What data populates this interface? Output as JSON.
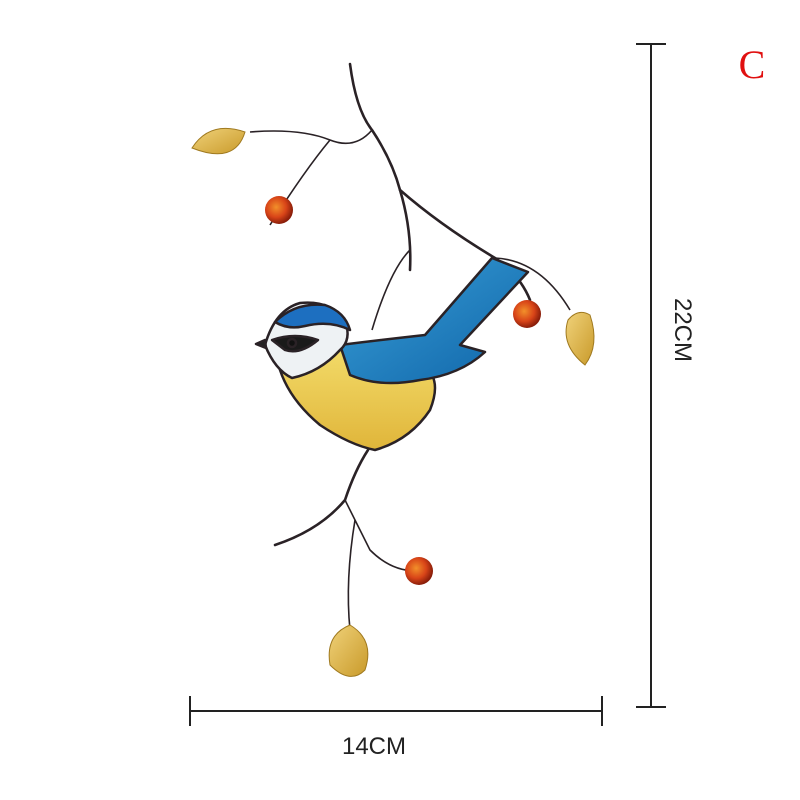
{
  "label": "C",
  "dimensions": {
    "height": "22CM",
    "width": "14CM"
  }
}
